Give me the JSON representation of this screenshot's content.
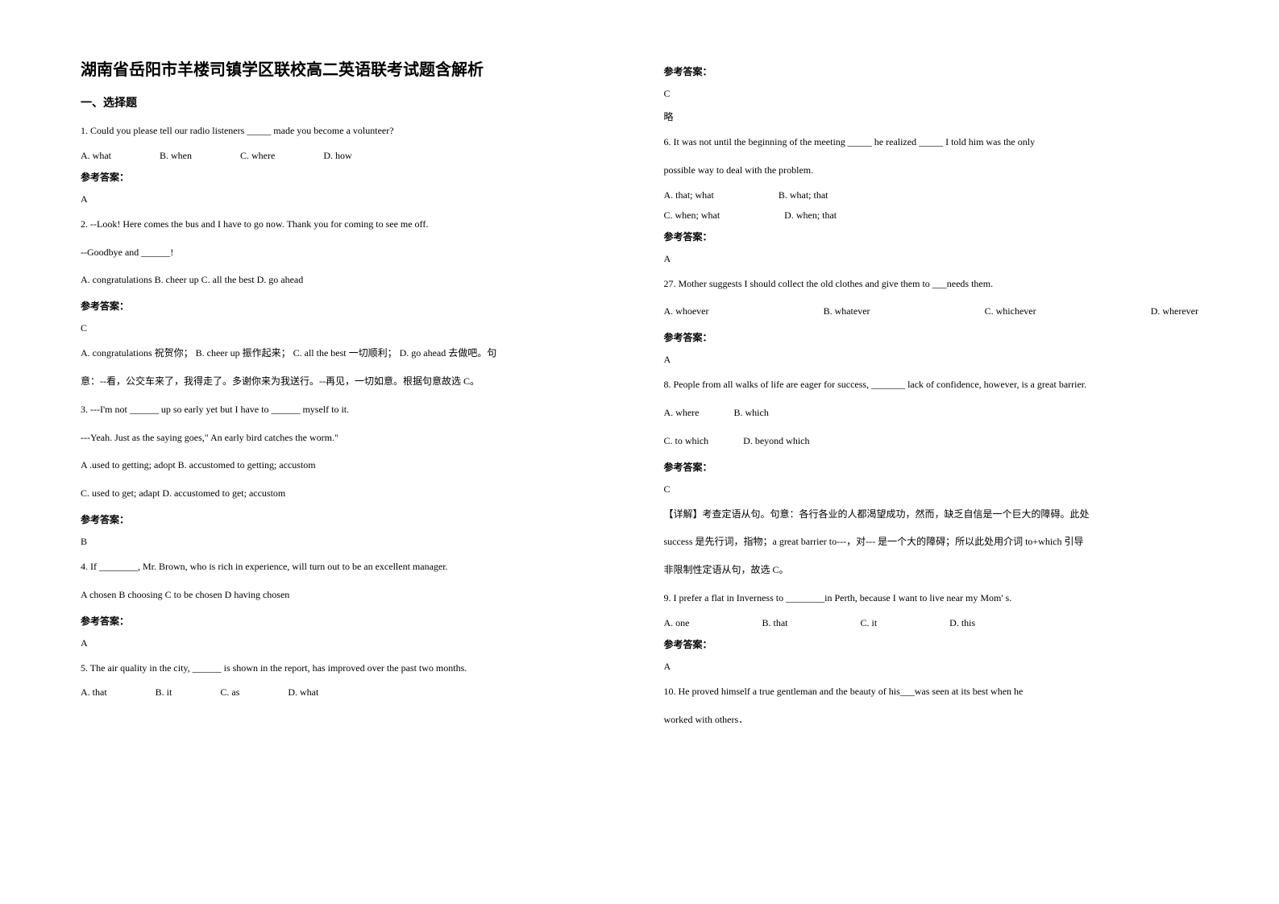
{
  "title": "湖南省岳阳市羊楼司镇学区联校高二英语联考试题含解析",
  "section1": "一、选择题",
  "q1": {
    "text": "1. Could you please tell our radio listeners _____ made you become a volunteer?",
    "a": "A. what",
    "b": "B. when",
    "c": "C. where",
    "d": "D. how",
    "ansLabel": "参考答案：",
    "ans": "A"
  },
  "q2": {
    "l1": "2. --Look! Here comes the bus and I have to go now. Thank you for coming to see me off.",
    "l2": "--Goodbye and ______!",
    "l3": "A. congratulations  B. cheer up    C. all the best    D. go ahead",
    "ansLabel": "参考答案：",
    "ans": "C",
    "exp1": "A. congratulations 祝贺你； B. cheer up 振作起来； C. all the best 一切顺利； D. go ahead 去做吧。句",
    "exp2": "意：--看，公交车来了，我得走了。多谢你来为我送行。--再见，一切如意。根据句意故选 C。"
  },
  "q3": {
    "l1": "3. ---I'm not ______ up so early yet but I have to ______ myself to it.",
    "l2": "---Yeah. Just as the saying goes,\" An early bird catches the worm.\"",
    "o1": "A .used to getting; adopt        B. accustomed to getting; accustom",
    "o2": "C. used to get; adapt     D. accustomed to get; accustom",
    "ansLabel": "参考答案：",
    "ans": "B"
  },
  "q4": {
    "l1": "4. If ________, Mr. Brown, who is rich in experience, will turn out to be an excellent manager.",
    "l2": "A chosen   B choosing   C to be chosen   D having chosen",
    "ansLabel": "参考答案：",
    "ans": "A"
  },
  "q5": {
    "l1": "5. The air quality in the city, ______ is shown in the report, has improved over the past two months.",
    "a": "A. that",
    "b": "B. it",
    "c": "C. as",
    "d": "D. what",
    "ansLabel": "参考答案：",
    "ans": "C",
    "skip": "略"
  },
  "q6": {
    "l1": "6. It was not until the beginning of the meeting _____ he realized _____ I told him was the only",
    "l2": "possible way to deal with the problem.",
    "a": "A. that; what",
    "b": "B. what; that",
    "c": "C. when; what",
    "d": "D. when; that",
    "ansLabel": "参考答案：",
    "ans": "A"
  },
  "q7": {
    "l1": "27. Mother suggests I should collect the old clothes and give them to ___needs them.",
    "a": "A. whoever",
    "b": "B. whatever",
    "c": "C. whichever",
    "d": "D. wherever",
    "ansLabel": "参考答案：",
    "ans": "A"
  },
  "q8": {
    "l1": "8. People from all walks of life are eager for success, _______ lack of confidence, however, is a great barrier.",
    "a": "A. where",
    "b": "B. which",
    "c": "C. to which",
    "d": "D. beyond which",
    "ansLabel": "参考答案：",
    "ans": "C",
    "exp1": "【详解】考查定语从句。句意：各行各业的人都渴望成功，然而，缺乏自信是一个巨大的障碍。此处",
    "exp2": "success 是先行词，指物；a great barrier to---，对--- 是一个大的障碍；所以此处用介词 to+which 引导",
    "exp3": "非限制性定语从句，故选 C。"
  },
  "q9": {
    "l1": "9. I prefer a flat in Inverness to ________in Perth, because I want to live near my Mom' s.",
    "a": "A. one",
    "b": "B. that",
    "c": "C. it",
    "d": "D. this",
    "ansLabel": "参考答案：",
    "ans": "A"
  },
  "q10": {
    "l1": " 10. He proved himself a true gentleman and the beauty of his___was seen at its best  when he",
    "l2": "worked with others．"
  }
}
